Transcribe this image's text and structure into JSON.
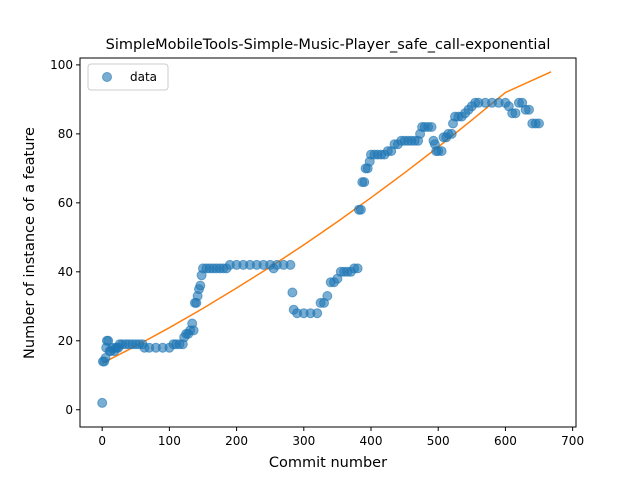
{
  "chart_data": {
    "type": "scatter",
    "title": "SimpleMobileTools-Simple-Music-Player_safe_call-exponential",
    "xlabel": "Commit number",
    "ylabel": "Number of instance of a feature",
    "xlim": [
      -33,
      705
    ],
    "ylim": [
      -5,
      102
    ],
    "xticks": [
      0,
      100,
      200,
      300,
      400,
      500,
      600,
      700
    ],
    "yticks": [
      0,
      20,
      40,
      60,
      80,
      100
    ],
    "grid": false,
    "legend": {
      "placement": "upper-left",
      "entries": [
        "data"
      ]
    },
    "colors": {
      "data": "#1f77b4",
      "fit": "#ff7f0e"
    },
    "series": [
      {
        "name": "data",
        "kind": "scatter",
        "points": [
          [
            0,
            2
          ],
          [
            1,
            14
          ],
          [
            3,
            14
          ],
          [
            5,
            15
          ],
          [
            6,
            18
          ],
          [
            7,
            20
          ],
          [
            9,
            20
          ],
          [
            11,
            17
          ],
          [
            13,
            17
          ],
          [
            15,
            18
          ],
          [
            18,
            17
          ],
          [
            20,
            18
          ],
          [
            22,
            18
          ],
          [
            24,
            18
          ],
          [
            26,
            19
          ],
          [
            30,
            19
          ],
          [
            35,
            19
          ],
          [
            40,
            19
          ],
          [
            45,
            19
          ],
          [
            50,
            19
          ],
          [
            55,
            19
          ],
          [
            60,
            19
          ],
          [
            63,
            18
          ],
          [
            70,
            18
          ],
          [
            80,
            18
          ],
          [
            90,
            18
          ],
          [
            100,
            18
          ],
          [
            106,
            19
          ],
          [
            110,
            19
          ],
          [
            115,
            19
          ],
          [
            120,
            19
          ],
          [
            122,
            21
          ],
          [
            125,
            22
          ],
          [
            128,
            22
          ],
          [
            131,
            23
          ],
          [
            134,
            25
          ],
          [
            136,
            23
          ],
          [
            138,
            31
          ],
          [
            140,
            31
          ],
          [
            142,
            33
          ],
          [
            144,
            35
          ],
          [
            146,
            36
          ],
          [
            148,
            39
          ],
          [
            150,
            41
          ],
          [
            155,
            41
          ],
          [
            160,
            41
          ],
          [
            165,
            41
          ],
          [
            170,
            41
          ],
          [
            175,
            41
          ],
          [
            180,
            41
          ],
          [
            185,
            41
          ],
          [
            190,
            42
          ],
          [
            200,
            42
          ],
          [
            210,
            42
          ],
          [
            220,
            42
          ],
          [
            230,
            42
          ],
          [
            240,
            42
          ],
          [
            250,
            42
          ],
          [
            255,
            41
          ],
          [
            260,
            42
          ],
          [
            270,
            42
          ],
          [
            280,
            42
          ],
          [
            283,
            34
          ],
          [
            285,
            29
          ],
          [
            290,
            28
          ],
          [
            300,
            28
          ],
          [
            310,
            28
          ],
          [
            320,
            28
          ],
          [
            325,
            31
          ],
          [
            330,
            31
          ],
          [
            335,
            33
          ],
          [
            340,
            37
          ],
          [
            345,
            37
          ],
          [
            350,
            38
          ],
          [
            355,
            40
          ],
          [
            360,
            40
          ],
          [
            365,
            40
          ],
          [
            370,
            40
          ],
          [
            375,
            41
          ],
          [
            380,
            41
          ],
          [
            382,
            58
          ],
          [
            385,
            58
          ],
          [
            387,
            66
          ],
          [
            390,
            66
          ],
          [
            392,
            70
          ],
          [
            395,
            70
          ],
          [
            398,
            72
          ],
          [
            400,
            74
          ],
          [
            405,
            74
          ],
          [
            410,
            74
          ],
          [
            415,
            74
          ],
          [
            420,
            74
          ],
          [
            425,
            75
          ],
          [
            430,
            75
          ],
          [
            435,
            77
          ],
          [
            440,
            77
          ],
          [
            445,
            78
          ],
          [
            450,
            78
          ],
          [
            455,
            78
          ],
          [
            460,
            78
          ],
          [
            465,
            78
          ],
          [
            470,
            78
          ],
          [
            473,
            80
          ],
          [
            476,
            82
          ],
          [
            480,
            82
          ],
          [
            485,
            82
          ],
          [
            490,
            82
          ],
          [
            493,
            78
          ],
          [
            495,
            77
          ],
          [
            497,
            75
          ],
          [
            500,
            75
          ],
          [
            505,
            75
          ],
          [
            508,
            79
          ],
          [
            512,
            79
          ],
          [
            515,
            80
          ],
          [
            520,
            80
          ],
          [
            522,
            83
          ],
          [
            525,
            85
          ],
          [
            530,
            85
          ],
          [
            535,
            85
          ],
          [
            540,
            86
          ],
          [
            545,
            87
          ],
          [
            550,
            88
          ],
          [
            555,
            89
          ],
          [
            560,
            89
          ],
          [
            570,
            89
          ],
          [
            580,
            89
          ],
          [
            590,
            89
          ],
          [
            600,
            89
          ],
          [
            605,
            88
          ],
          [
            610,
            86
          ],
          [
            615,
            86
          ],
          [
            620,
            89
          ],
          [
            625,
            89
          ],
          [
            630,
            87
          ],
          [
            635,
            87
          ],
          [
            640,
            83
          ],
          [
            645,
            83
          ],
          [
            650,
            83
          ]
        ]
      },
      {
        "name": "fit",
        "kind": "line",
        "points": [
          [
            0,
            13.5
          ],
          [
            50,
            18.5
          ],
          [
            100,
            23.8
          ],
          [
            150,
            29.4
          ],
          [
            200,
            35.3
          ],
          [
            250,
            41.4
          ],
          [
            300,
            47.8
          ],
          [
            350,
            54.5
          ],
          [
            400,
            61.5
          ],
          [
            450,
            68.7
          ],
          [
            500,
            76.2
          ],
          [
            550,
            84.0
          ],
          [
            600,
            92.0
          ],
          [
            668,
            98
          ]
        ]
      }
    ]
  }
}
